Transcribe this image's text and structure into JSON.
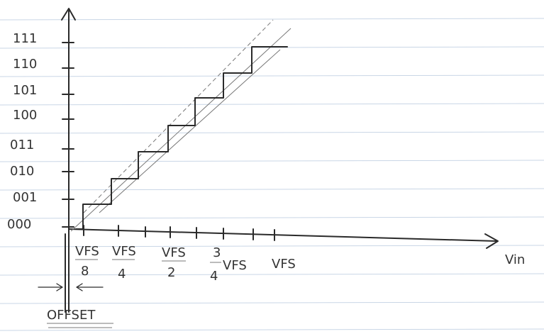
{
  "y_axis": {
    "codes": [
      "111",
      "110",
      "101",
      "100",
      "011",
      "010",
      "001",
      "000"
    ]
  },
  "x_axis": {
    "label": "Vin",
    "ticks": [
      {
        "numerator": "VFS",
        "denominator": "8"
      },
      {
        "numerator": "VFS",
        "denominator": "4"
      },
      {
        "numerator": "VFS",
        "denominator": "2"
      },
      {
        "numerator": "3",
        "denominator": "4",
        "suffix": "VFS"
      },
      {
        "text": "VFS"
      }
    ]
  },
  "offset_label": "OFFSET"
}
